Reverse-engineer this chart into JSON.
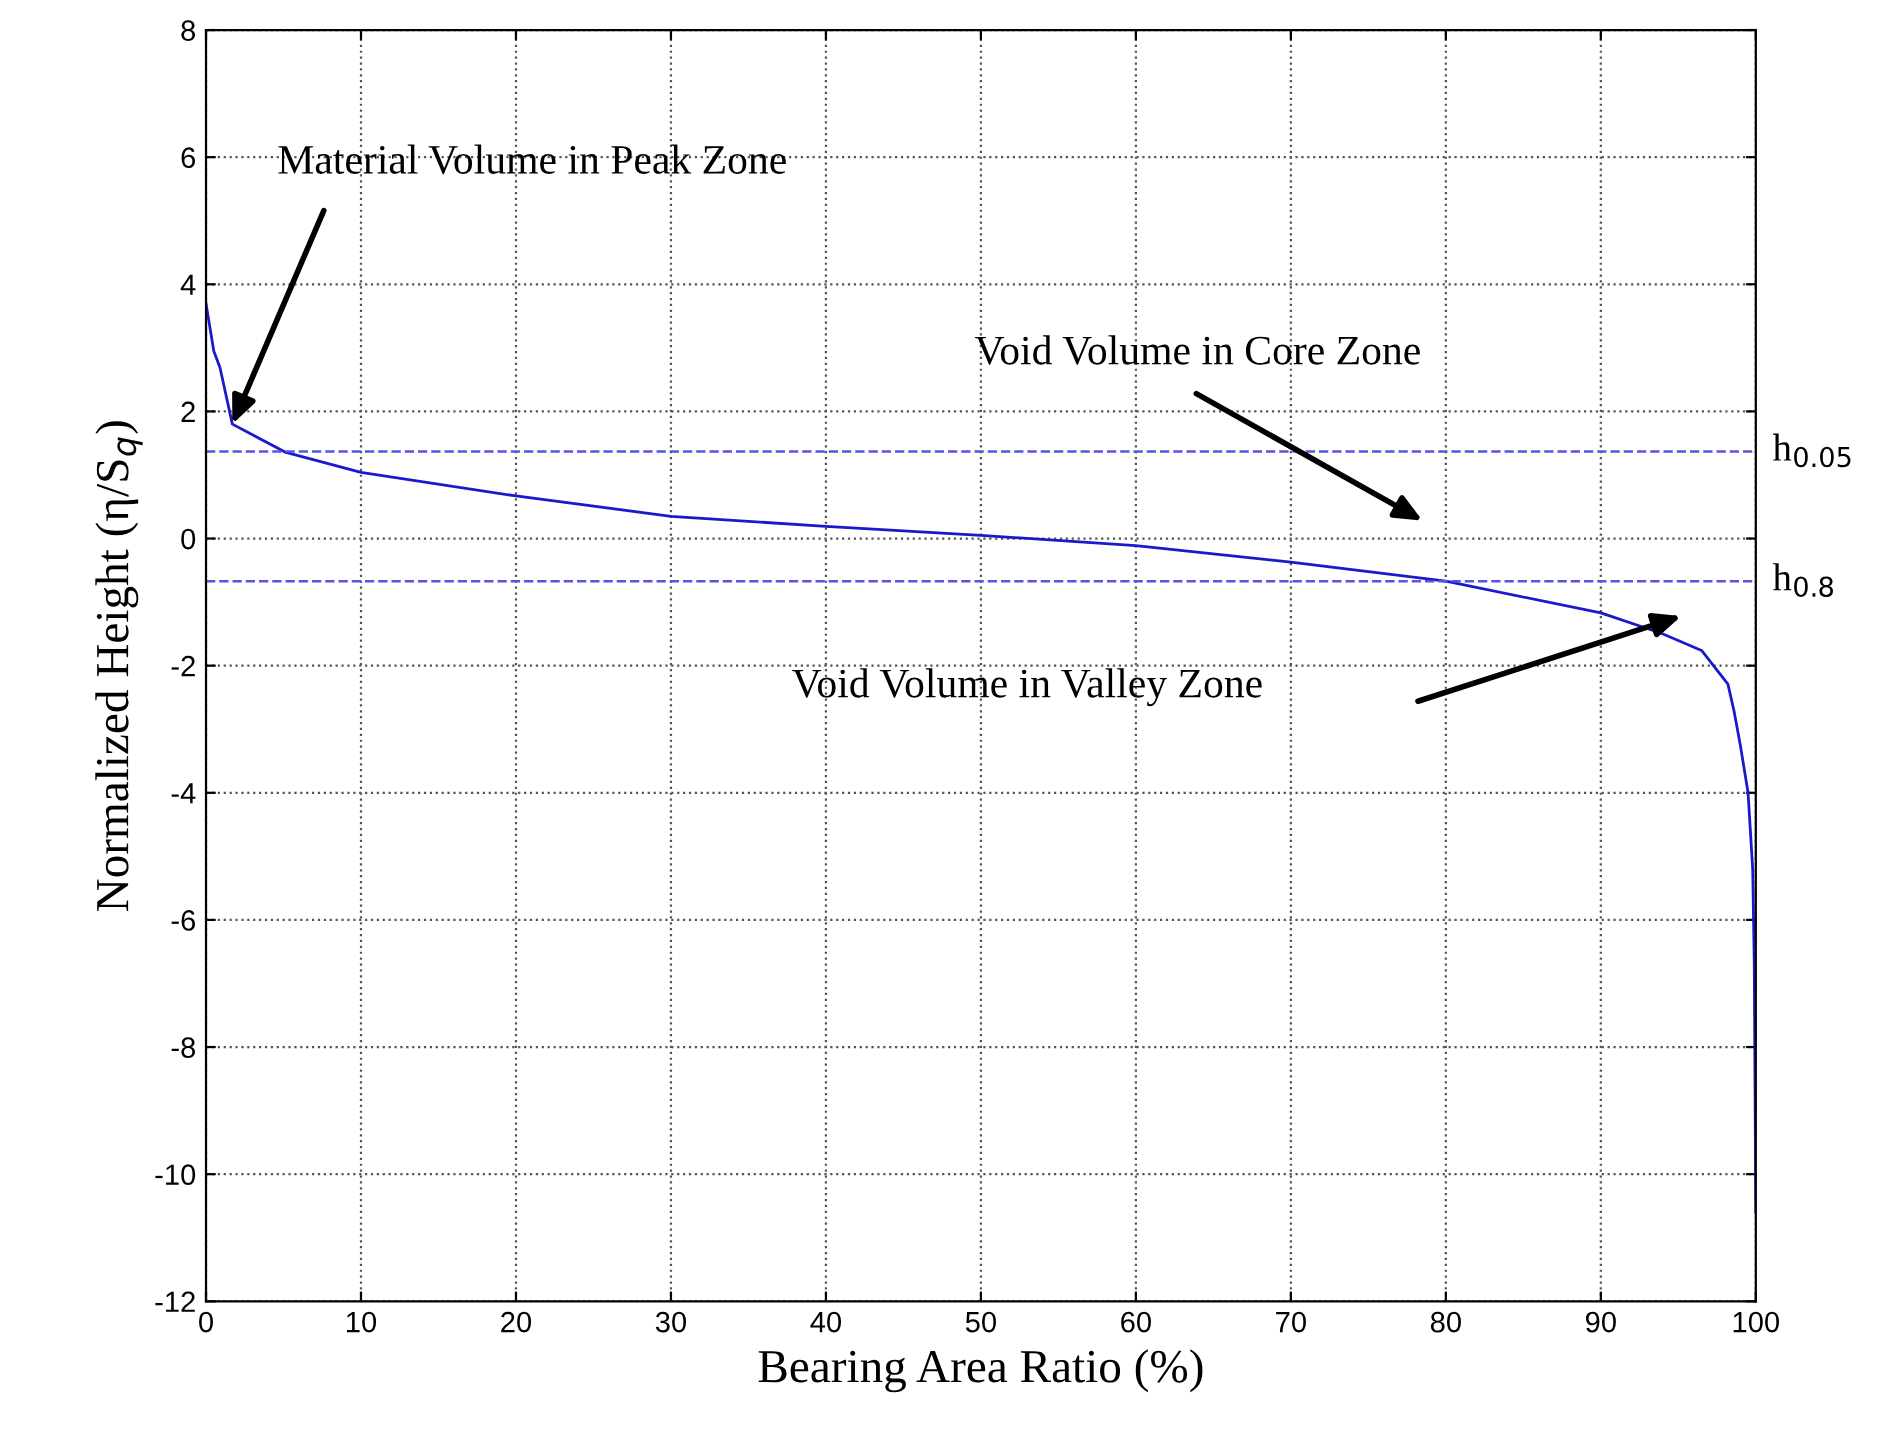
{
  "chart_data": {
    "type": "line",
    "xlabel": "Bearing Area Ratio (%)",
    "ylabel": "Normalized Height (η/S$_{q}$)",
    "x": [
      0,
      0.5,
      0.9,
      1.7,
      5.1,
      10,
      20,
      30,
      40,
      50,
      60,
      70,
      80,
      90,
      93.9,
      96.5,
      98.2,
      98.6,
      99,
      99.5,
      99.8,
      99.9,
      100
    ],
    "series": [
      {
        "color": "#1a1acc",
        "values": [
          3.7,
          2.95,
          2.69,
          1.8,
          1.36,
          1.04,
          0.67,
          0.35,
          0.19,
          0.05,
          -0.11,
          -0.37,
          -0.67,
          -1.17,
          -1.49,
          -1.76,
          -2.29,
          -2.72,
          -3.25,
          -4.0,
          -5.2,
          -6.7,
          -10.6
        ]
      }
    ],
    "xlim": [
      0,
      100
    ],
    "ylim": [
      -12,
      8
    ],
    "xticks": [
      0,
      10,
      20,
      30,
      40,
      50,
      60,
      70,
      80,
      90,
      100
    ],
    "yticks": [
      -12,
      -10,
      -8,
      -6,
      -4,
      -2,
      0,
      2,
      4,
      6,
      8
    ],
    "grid": true,
    "line_style": "solid",
    "marker": "none",
    "ref_lines": [
      {
        "axis": "y",
        "value": 1.37,
        "label": "h$_{0.05}$",
        "color": "#5555dd",
        "line_style": "dashed"
      },
      {
        "axis": "y",
        "value": -0.67,
        "label": "h$_{0.8}$",
        "color": "#5555dd",
        "line_style": "dashed"
      }
    ],
    "annotations": [
      {
        "text": "Material Volume in Peak Zone",
        "x": 1.7,
        "y": 1.8
      },
      "Void Volume in Core Zone",
      "Void Volume in Valley Zone"
    ]
  }
}
